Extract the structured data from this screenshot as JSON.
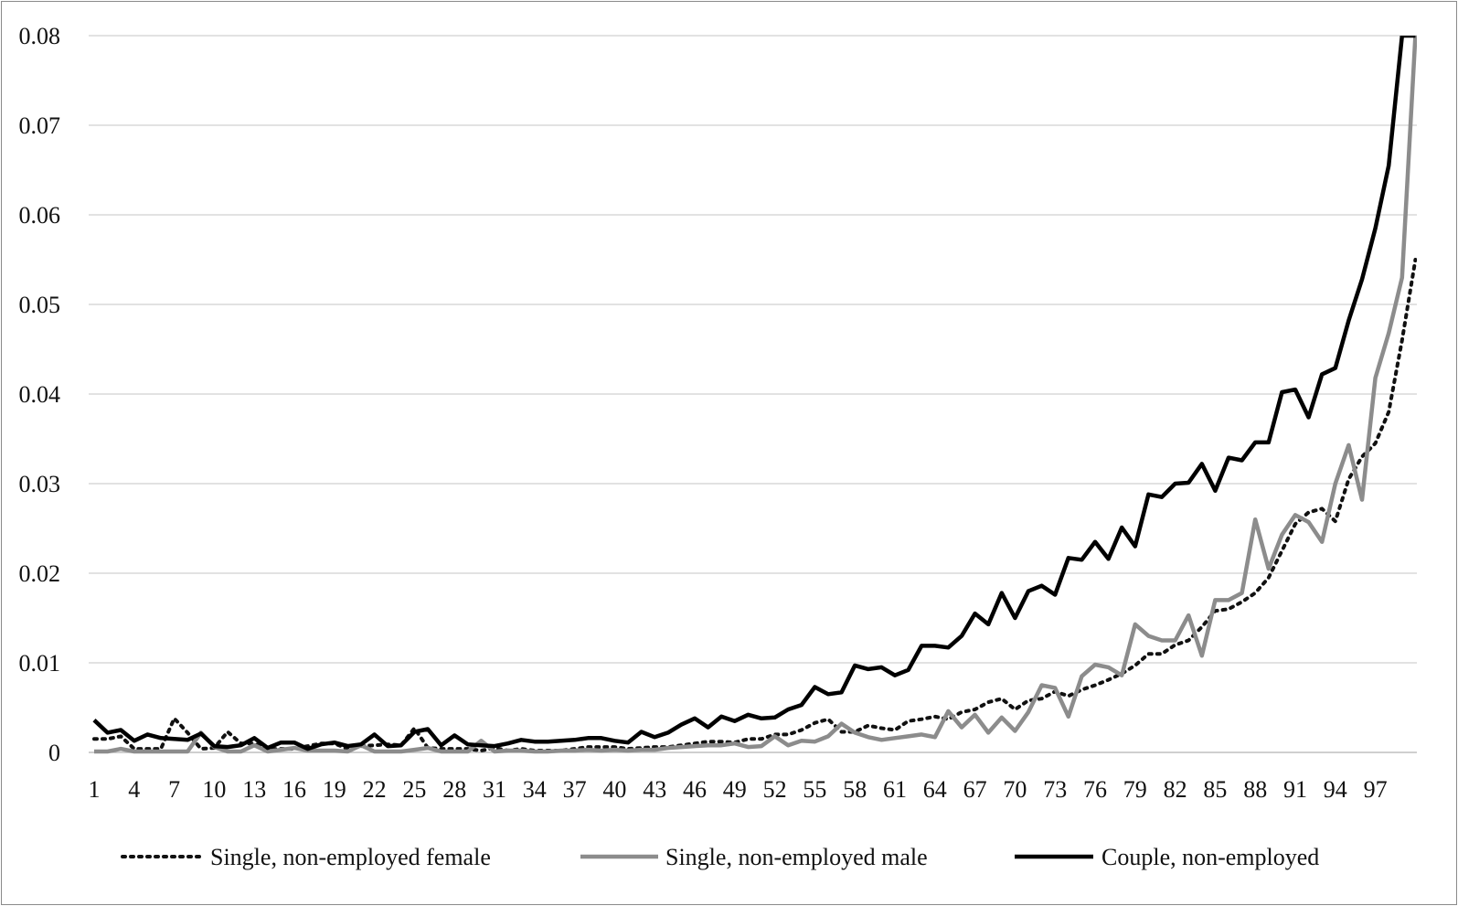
{
  "chart_data": {
    "type": "line",
    "title": "",
    "xlabel": "",
    "ylabel": "",
    "ylim": [
      0,
      0.08
    ],
    "yticks": [
      "0",
      "0.01",
      "0.02",
      "0.03",
      "0.04",
      "0.05",
      "0.06",
      "0.07",
      "0.08"
    ],
    "xtick_labels": [
      "1",
      "4",
      "7",
      "10",
      "13",
      "16",
      "19",
      "22",
      "25",
      "28",
      "31",
      "34",
      "37",
      "40",
      "43",
      "46",
      "49",
      "52",
      "55",
      "58",
      "61",
      "64",
      "67",
      "70",
      "73",
      "76",
      "79",
      "82",
      "85",
      "88",
      "91",
      "94",
      "97"
    ],
    "grid": "horizontal",
    "legend_position": "bottom",
    "x": [
      1,
      2,
      3,
      4,
      5,
      6,
      7,
      8,
      9,
      10,
      11,
      12,
      13,
      14,
      15,
      16,
      17,
      18,
      19,
      20,
      21,
      22,
      23,
      24,
      25,
      26,
      27,
      28,
      29,
      30,
      31,
      32,
      33,
      34,
      35,
      36,
      37,
      38,
      39,
      40,
      41,
      42,
      43,
      44,
      45,
      46,
      47,
      48,
      49,
      50,
      51,
      52,
      53,
      54,
      55,
      56,
      57,
      58,
      59,
      60,
      61,
      62,
      63,
      64,
      65,
      66,
      67,
      68,
      69,
      70,
      71,
      72,
      73,
      74,
      75,
      76,
      77,
      78,
      79,
      80,
      81,
      82,
      83,
      84,
      85,
      86,
      87,
      88,
      89,
      90,
      91,
      92,
      93,
      94,
      95,
      96,
      97,
      98,
      99,
      100
    ],
    "series": [
      {
        "name": "Single, non-employed female",
        "style": "dotted",
        "color": "#111111",
        "values": [
          0.0015,
          0.0015,
          0.0018,
          0.0004,
          0.0004,
          0.0004,
          0.0038,
          0.0022,
          0.0004,
          0.0005,
          0.0023,
          0.001,
          0.001,
          0.0004,
          0.0004,
          0.0004,
          0.0007,
          0.001,
          0.001,
          0.0004,
          0.0007,
          0.0008,
          0.0009,
          0.0008,
          0.0027,
          0.0005,
          0.0004,
          0.0004,
          0.0004,
          0.0002,
          0.0005,
          0.0002,
          0.0004,
          0.0002,
          0.0002,
          0.0002,
          0.0004,
          0.0006,
          0.0006,
          0.0006,
          0.0004,
          0.0005,
          0.0006,
          0.0006,
          0.0008,
          0.001,
          0.0012,
          0.0012,
          0.0011,
          0.0015,
          0.0015,
          0.002,
          0.002,
          0.0025,
          0.0033,
          0.0037,
          0.0023,
          0.0023,
          0.003,
          0.0027,
          0.0025,
          0.0035,
          0.0037,
          0.004,
          0.0037,
          0.0045,
          0.0048,
          0.0056,
          0.006,
          0.0048,
          0.0058,
          0.006,
          0.0068,
          0.0063,
          0.007,
          0.0075,
          0.0081,
          0.0088,
          0.0097,
          0.011,
          0.011,
          0.012,
          0.0125,
          0.014,
          0.0158,
          0.016,
          0.0168,
          0.0178,
          0.0195,
          0.0225,
          0.0255,
          0.0268,
          0.0272,
          0.0258,
          0.0305,
          0.033,
          0.0345,
          0.038,
          0.046,
          0.055
        ]
      },
      {
        "name": "Single, non-employed male",
        "style": "solid",
        "color": "#8c8c8c",
        "values": [
          0.0001,
          0.0001,
          0.0004,
          0.0001,
          0.0001,
          0.0001,
          0.0001,
          0.0001,
          0.0022,
          0.0006,
          0.0001,
          0.0001,
          0.0008,
          0.0001,
          0.0003,
          0.0005,
          0.0002,
          0.0002,
          0.0002,
          0.0001,
          0.0008,
          0.0001,
          0.0001,
          0.0001,
          0.0003,
          0.0005,
          0.0001,
          0.0001,
          0.0001,
          0.0013,
          0.0001,
          0.0002,
          0.0002,
          0.0001,
          0.0001,
          0.0002,
          0.0002,
          0.0003,
          0.0002,
          0.0003,
          0.0002,
          0.0003,
          0.0003,
          0.0005,
          0.0006,
          0.0007,
          0.0008,
          0.0008,
          0.001,
          0.0006,
          0.0007,
          0.0018,
          0.0008,
          0.0013,
          0.0012,
          0.0018,
          0.0032,
          0.0022,
          0.0017,
          0.0014,
          0.0016,
          0.0018,
          0.002,
          0.0017,
          0.0046,
          0.0028,
          0.0042,
          0.0022,
          0.0039,
          0.0024,
          0.0045,
          0.0075,
          0.0072,
          0.004,
          0.0085,
          0.0098,
          0.0095,
          0.0086,
          0.0143,
          0.013,
          0.0125,
          0.0125,
          0.0153,
          0.0108,
          0.017,
          0.017,
          0.0178,
          0.026,
          0.0205,
          0.0243,
          0.0265,
          0.0257,
          0.0235,
          0.03,
          0.0343,
          0.0282,
          0.0418,
          0.0468,
          0.053,
          0.08
        ]
      },
      {
        "name": "Couple, non-employed",
        "style": "solid",
        "color": "#000000",
        "values": [
          0.0036,
          0.0022,
          0.0025,
          0.0013,
          0.002,
          0.0016,
          0.0015,
          0.0014,
          0.0021,
          0.0007,
          0.0006,
          0.0008,
          0.0016,
          0.0005,
          0.0011,
          0.0011,
          0.0004,
          0.0009,
          0.0011,
          0.0007,
          0.0009,
          0.002,
          0.0007,
          0.0008,
          0.0023,
          0.0026,
          0.0008,
          0.0019,
          0.0009,
          0.0008,
          0.0007,
          0.001,
          0.0014,
          0.0012,
          0.0012,
          0.0013,
          0.0014,
          0.0016,
          0.0016,
          0.0013,
          0.0011,
          0.0023,
          0.0017,
          0.0022,
          0.0031,
          0.0038,
          0.0028,
          0.004,
          0.0035,
          0.0042,
          0.0038,
          0.0039,
          0.0048,
          0.0053,
          0.0073,
          0.0065,
          0.0067,
          0.0097,
          0.0093,
          0.0095,
          0.0086,
          0.0092,
          0.0119,
          0.0119,
          0.0117,
          0.013,
          0.0155,
          0.0143,
          0.0178,
          0.015,
          0.018,
          0.0186,
          0.0176,
          0.0217,
          0.0215,
          0.0235,
          0.0216,
          0.0251,
          0.023,
          0.0288,
          0.0285,
          0.03,
          0.0301,
          0.0322,
          0.0292,
          0.0329,
          0.0326,
          0.0346,
          0.0346,
          0.0402,
          0.0405,
          0.0374,
          0.0422,
          0.0429,
          0.0482,
          0.0528,
          0.0585,
          0.0655,
          0.08,
          0.08
        ]
      }
    ]
  }
}
